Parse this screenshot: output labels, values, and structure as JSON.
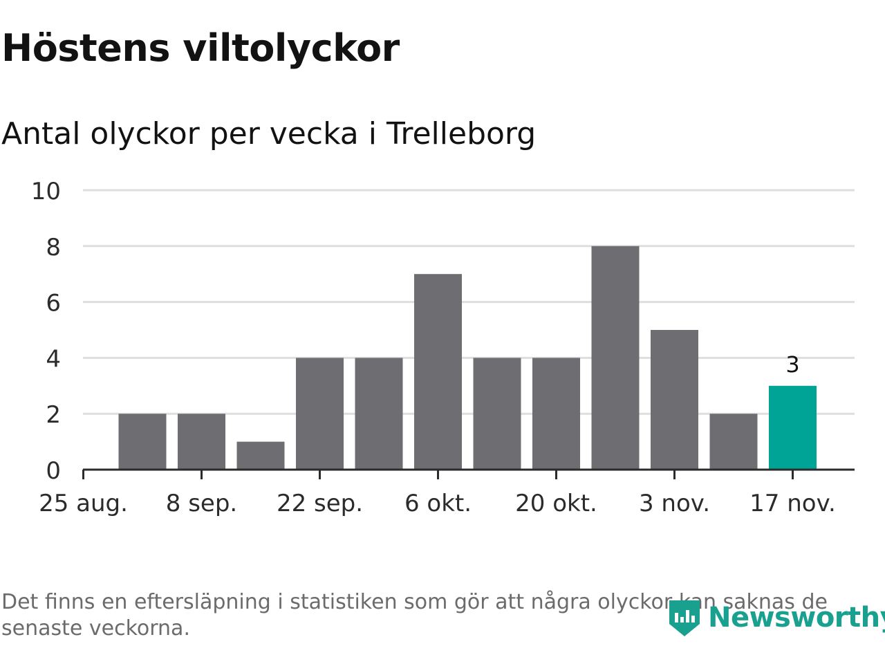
{
  "title": "Höstens viltolyckor",
  "subtitle": "Antal olyckor per vecka i Trelleborg",
  "footnote": "Det finns en eftersläpning i statistiken som gör att några olyckor kan saknas de senaste veckorna.",
  "logo": {
    "text": "Newsworthy",
    "icon": "bar-chart-shield-icon",
    "color": "#1aa08f"
  },
  "chart_data": {
    "type": "bar",
    "categories": [
      "25 aug.",
      "1 sep.",
      "8 sep.",
      "15 sep.",
      "22 sep.",
      "29 sep.",
      "6 okt.",
      "13 okt.",
      "20 okt.",
      "27 okt.",
      "3 nov.",
      "10 nov.",
      "17 nov."
    ],
    "values": [
      0,
      2,
      2,
      1,
      4,
      4,
      7,
      4,
      4,
      8,
      5,
      2,
      3
    ],
    "x_tick_labels": [
      "25 aug.",
      "8 sep.",
      "22 sep.",
      "6 okt.",
      "20 okt.",
      "3 nov.",
      "17 nov."
    ],
    "y_ticks": [
      0,
      2,
      4,
      6,
      8,
      10
    ],
    "ylim": [
      0,
      10
    ],
    "highlight": {
      "category": "17 nov.",
      "label": "3"
    },
    "colors": {
      "bar": "#6e6d72",
      "highlight": "#00a497",
      "grid": "#dedede",
      "axis": "#2b2b2b"
    },
    "grid": true
  }
}
